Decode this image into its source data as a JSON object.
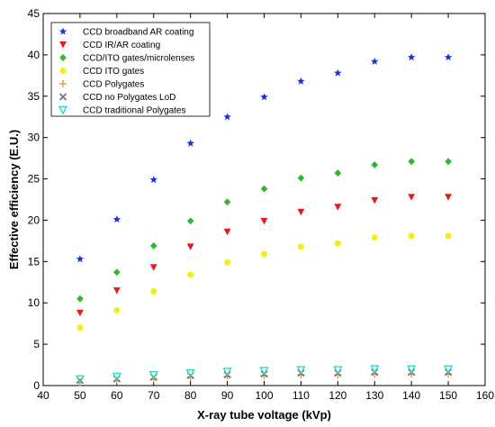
{
  "chart_data": {
    "type": "scatter",
    "xlabel": "X-ray tube voltage (kVp)",
    "ylabel": "Effective efficiency (E.U.)",
    "xlim": [
      40,
      160
    ],
    "ylim": [
      0,
      45
    ],
    "xticks": [
      40,
      50,
      60,
      70,
      80,
      90,
      100,
      110,
      120,
      130,
      140,
      150,
      160
    ],
    "yticks": [
      0,
      5,
      10,
      15,
      20,
      25,
      30,
      35,
      40,
      45
    ],
    "grid": false,
    "legend_position": "top-left",
    "x": [
      50,
      60,
      70,
      80,
      90,
      100,
      110,
      120,
      130,
      140,
      150
    ],
    "series": [
      {
        "name": "CCD broadband AR coating",
        "marker": "star",
        "color": "#1a2fd6",
        "values": [
          15.3,
          20.1,
          24.9,
          29.3,
          32.5,
          34.9,
          36.8,
          37.8,
          39.2,
          39.7,
          39.7
        ]
      },
      {
        "name": "CCD IR/AR coating",
        "marker": "triangle-down",
        "color": "#e02020",
        "values": [
          8.8,
          11.5,
          14.3,
          16.8,
          18.6,
          19.9,
          21.0,
          21.6,
          22.4,
          22.8,
          22.8
        ]
      },
      {
        "name": "CCD/ITO gates/microlenses",
        "marker": "diamond",
        "color": "#2db82d",
        "values": [
          10.5,
          13.7,
          16.9,
          19.9,
          22.2,
          23.8,
          25.1,
          25.7,
          26.7,
          27.1,
          27.1
        ]
      },
      {
        "name": "CCD ITO gates",
        "marker": "circle",
        "color": "#f5ee10",
        "values": [
          7.0,
          9.1,
          11.4,
          13.4,
          14.9,
          15.9,
          16.8,
          17.2,
          17.9,
          18.1,
          18.1
        ]
      },
      {
        "name": "CCD Polygates",
        "marker": "plus",
        "color": "#f0a050",
        "values": [
          0.4,
          0.6,
          0.8,
          1.0,
          1.1,
          1.2,
          1.3,
          1.3,
          1.4,
          1.4,
          1.4
        ]
      },
      {
        "name": "CCD no Polygates LoD",
        "marker": "x",
        "color": "#707070",
        "values": [
          0.6,
          0.8,
          1.0,
          1.2,
          1.3,
          1.4,
          1.5,
          1.5,
          1.6,
          1.6,
          1.6
        ]
      },
      {
        "name": "CCD traditional Polygates",
        "marker": "triangle-down-open",
        "color": "#30d8c8",
        "values": [
          0.8,
          1.1,
          1.3,
          1.5,
          1.7,
          1.8,
          1.9,
          1.9,
          2.0,
          2.0,
          2.0
        ]
      }
    ]
  }
}
